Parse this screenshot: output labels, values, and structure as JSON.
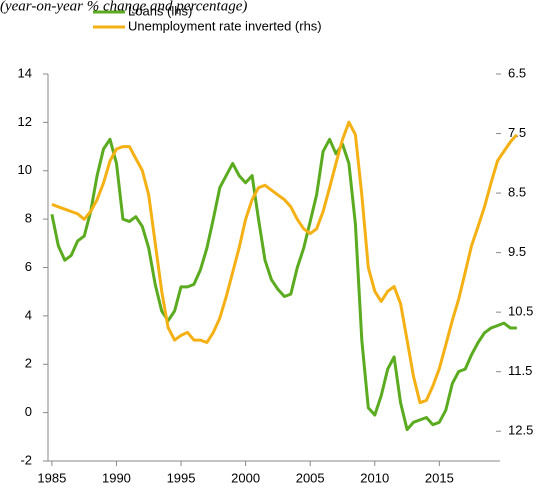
{
  "chart_data": {
    "type": "line",
    "title": "(year-on-year % change and percentage)",
    "x": [
      1985,
      1985.5,
      1986,
      1986.5,
      1987,
      1987.5,
      1988,
      1988.5,
      1989,
      1989.5,
      1990,
      1990.5,
      1991,
      1991.5,
      1992,
      1992.5,
      1993,
      1993.5,
      1994,
      1994.5,
      1995,
      1995.5,
      1996,
      1996.5,
      1997,
      1997.5,
      1998,
      1998.5,
      1999,
      1999.5,
      2000,
      2000.5,
      2001,
      2001.5,
      2002,
      2002.5,
      2003,
      2003.5,
      2004,
      2004.5,
      2005,
      2005.5,
      2006,
      2006.5,
      2007,
      2007.5,
      2008,
      2008.5,
      2009,
      2009.5,
      2010,
      2010.5,
      2011,
      2011.5,
      2012,
      2012.5,
      2013,
      2013.5,
      2014,
      2014.5,
      2015,
      2015.5,
      2016,
      2016.5,
      2017,
      2017.5,
      2018,
      2018.5,
      2019,
      2019.5,
      2020,
      2020.5,
      2021
    ],
    "series": [
      {
        "name": "Loans (lhs)",
        "color": "#5aab1f",
        "axis": "y",
        "values": [
          8.2,
          6.9,
          6.3,
          6.5,
          7.1,
          7.3,
          8.3,
          9.8,
          10.9,
          11.3,
          10.3,
          8.0,
          7.9,
          8.1,
          7.7,
          6.8,
          5.3,
          4.2,
          3.8,
          4.2,
          5.2,
          5.2,
          5.3,
          5.9,
          6.8,
          8.0,
          9.3,
          9.8,
          10.3,
          9.8,
          9.5,
          9.8,
          8.0,
          6.3,
          5.5,
          5.1,
          4.8,
          4.9,
          6.0,
          6.8,
          7.9,
          9.0,
          10.8,
          11.3,
          10.7,
          11.1,
          10.3,
          7.8,
          3.0,
          0.2,
          -0.1,
          0.7,
          1.8,
          2.3,
          0.4,
          -0.7,
          -0.4,
          -0.3,
          -0.2,
          -0.5,
          -0.4,
          0.1,
          1.2,
          1.7,
          1.8,
          2.4,
          2.9,
          3.3,
          3.5,
          3.6,
          3.7,
          3.5,
          3.5
        ]
      },
      {
        "name": "Unemployment rate inverted (rhs)",
        "color": "#f5b014",
        "axis": "y2",
        "values": [
          8.69,
          8.73,
          8.77,
          8.81,
          8.85,
          8.94,
          8.81,
          8.61,
          8.33,
          7.96,
          7.76,
          7.72,
          7.72,
          7.92,
          8.12,
          8.53,
          9.34,
          10.15,
          10.76,
          10.97,
          10.89,
          10.84,
          10.97,
          10.97,
          11.01,
          10.84,
          10.6,
          10.24,
          9.83,
          9.42,
          8.94,
          8.61,
          8.41,
          8.37,
          8.45,
          8.53,
          8.61,
          8.73,
          8.94,
          9.1,
          9.18,
          9.1,
          8.81,
          8.41,
          8.0,
          7.6,
          7.31,
          7.52,
          8.53,
          9.75,
          10.15,
          10.32,
          10.15,
          10.07,
          10.36,
          10.97,
          11.58,
          12.02,
          11.98,
          11.74,
          11.45,
          11.05,
          10.64,
          10.28,
          9.83,
          9.38,
          9.06,
          8.73,
          8.33,
          7.96,
          7.8,
          7.64,
          7.52
        ]
      }
    ],
    "xlim": [
      1984.7,
      2021.4
    ],
    "xticks": [
      1985,
      1990,
      1995,
      2000,
      2005,
      2010,
      2015
    ],
    "ylim": [
      -2,
      14
    ],
    "yticks": [
      -2,
      0,
      2,
      4,
      6,
      8,
      10,
      12,
      14
    ],
    "y2lim": [
      13,
      6.5
    ],
    "y2ticks": [
      6.5,
      7.5,
      8.5,
      9.5,
      10.5,
      11.5,
      12.5
    ],
    "legend": "top"
  }
}
